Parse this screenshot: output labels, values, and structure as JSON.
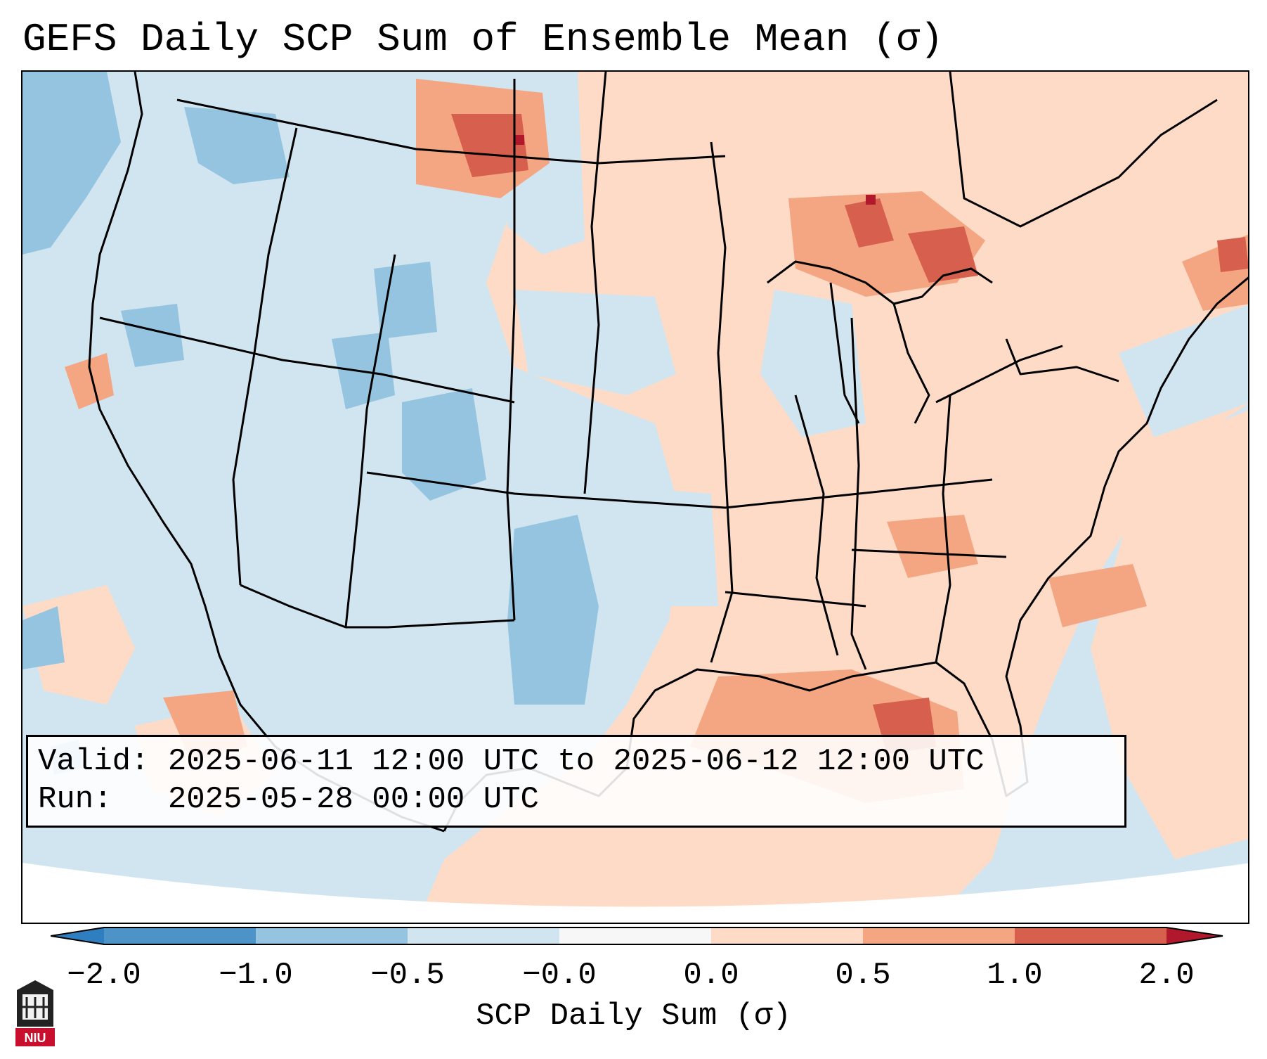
{
  "title": "GEFS Daily SCP Sum of Ensemble Mean (σ)",
  "info_box": {
    "valid_label": "Valid:",
    "valid_value": "2025-06-11 12:00 UTC to 2025-06-12 12:00 UTC",
    "run_label": "Run:  ",
    "run_value": "2025-05-28 00:00 UTC"
  },
  "colorbar": {
    "label": "SCP Daily Sum (σ)",
    "ticks": [
      "−2.0",
      "−1.0",
      "−0.5",
      "−0.0",
      "0.0",
      "0.5",
      "1.0",
      "2.0"
    ],
    "bins": [
      {
        "range": "< -2.0",
        "color": "#2f7ec0"
      },
      {
        "range": "-2.0 to -1.0",
        "color": "#4d93c8"
      },
      {
        "range": "-1.0 to -0.5",
        "color": "#94c4df"
      },
      {
        "range": "-0.5 to -0.0",
        "color": "#d1e5f0"
      },
      {
        "range": "-0.0 to 0.0",
        "color": "#f7f7f7"
      },
      {
        "range": "0.0 to 0.5",
        "color": "#fddbc7"
      },
      {
        "range": "0.5 to 1.0",
        "color": "#f4a582"
      },
      {
        "range": "1.0 to 2.0",
        "color": "#d6604d"
      },
      {
        "range": "> 2.0",
        "color": "#b2182b"
      }
    ]
  },
  "logo": {
    "text": "NIU",
    "color": "#c8102e"
  },
  "map_regions": {
    "neutral": "#d1e5f0",
    "positive_light": "#fddbc7",
    "positive_medium": "#f4a582",
    "positive_strong": "#d6604d",
    "negative_medium": "#94c4df"
  }
}
